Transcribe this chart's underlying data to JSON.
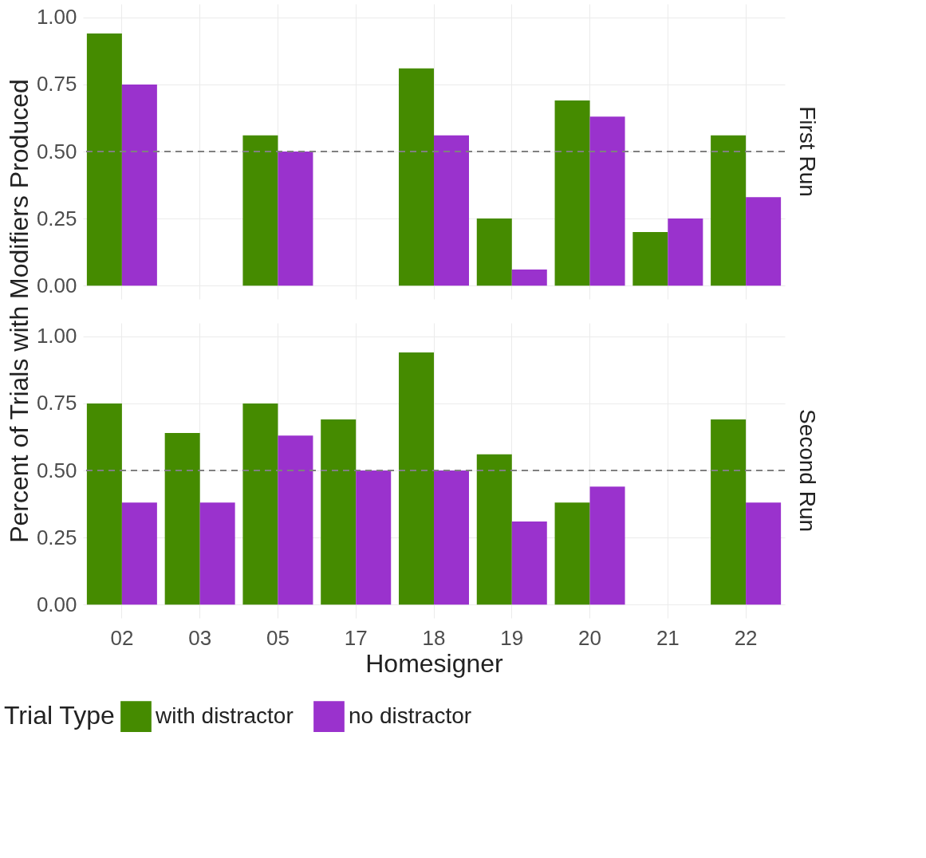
{
  "chart_data": [
    {
      "type": "bar",
      "title": "First Run",
      "ylabel": "Percent of Trials with Modifiers Produced",
      "categories": [
        "02",
        "03",
        "05",
        "17",
        "18",
        "19",
        "20",
        "21",
        "22"
      ],
      "series": [
        {
          "name": "with distractor",
          "color": "#458b00",
          "values": [
            0.94,
            null,
            0.56,
            null,
            0.81,
            0.25,
            0.69,
            0.2,
            0.56
          ]
        },
        {
          "name": "no distractor",
          "color": "#9a32cd",
          "values": [
            0.75,
            null,
            0.5,
            null,
            0.56,
            0.06,
            0.63,
            0.25,
            0.33
          ]
        }
      ],
      "ylim": [
        -0.05,
        1.05
      ],
      "yticks": [
        {
          "value": 0,
          "label": "0.00"
        },
        {
          "value": 0.25,
          "label": "0.25"
        },
        {
          "value": 0.5,
          "label": "0.50"
        },
        {
          "value": 0.75,
          "label": "0.75"
        },
        {
          "value": 1,
          "label": "1.00"
        }
      ],
      "ref_lines": [
        {
          "axis": "y",
          "value": 0.5,
          "color": "#808080",
          "line_style": "dashed"
        }
      ],
      "grid": true,
      "tick_labels": "y",
      "legend": "bottom"
    },
    {
      "type": "bar",
      "title": "Second Run",
      "xlabel": "Homesigner",
      "legend_title": "Trial Type",
      "categories": [
        "02",
        "03",
        "05",
        "17",
        "18",
        "19",
        "20",
        "21",
        "22"
      ],
      "series": [
        {
          "name": "with distractor",
          "color": "#458b00",
          "values": [
            0.75,
            0.64,
            0.75,
            0.69,
            0.94,
            0.56,
            0.38,
            null,
            0.69
          ]
        },
        {
          "name": "no distractor",
          "color": "#9a32cd",
          "values": [
            0.38,
            0.38,
            0.63,
            0.5,
            0.5,
            0.31,
            0.44,
            null,
            0.38
          ]
        }
      ],
      "ylim": [
        -0.05,
        1.05
      ],
      "yticks": [
        {
          "value": 0,
          "label": "0.00"
        },
        {
          "value": 0.25,
          "label": "0.25"
        },
        {
          "value": 0.5,
          "label": "0.50"
        },
        {
          "value": 0.75,
          "label": "0.75"
        },
        {
          "value": 1,
          "label": "1.00"
        }
      ],
      "ref_lines": [
        {
          "axis": "y",
          "value": 0.5,
          "color": "#808080",
          "line_style": "dashed"
        }
      ],
      "grid": true,
      "legend": "bottom"
    }
  ]
}
